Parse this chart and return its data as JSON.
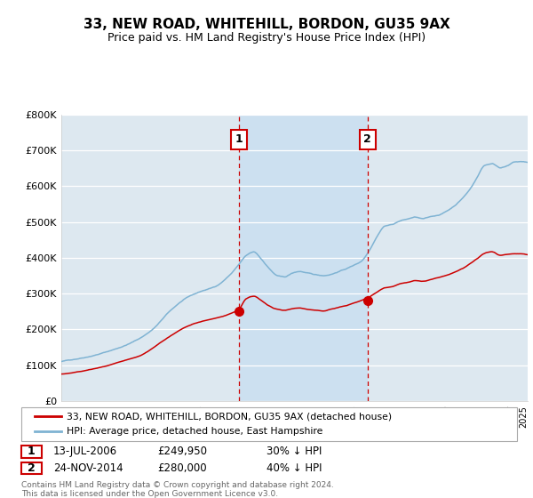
{
  "title": "33, NEW ROAD, WHITEHILL, BORDON, GU35 9AX",
  "subtitle": "Price paid vs. HM Land Registry's House Price Index (HPI)",
  "ylabel_ticks": [
    "£0",
    "£100K",
    "£200K",
    "£300K",
    "£400K",
    "£500K",
    "£600K",
    "£700K",
    "£800K"
  ],
  "ytick_values": [
    0,
    100000,
    200000,
    300000,
    400000,
    500000,
    600000,
    700000,
    800000
  ],
  "ylim": [
    0,
    800000
  ],
  "xlim_start": 1995.0,
  "xlim_end": 2025.3,
  "sale1_x": 2006.54,
  "sale1_y": 249950,
  "sale2_x": 2014.9,
  "sale2_y": 280000,
  "red_line_color": "#cc0000",
  "blue_line_color": "#7fb3d3",
  "highlight_color": "#c8dff0",
  "bg_color": "#dde8f0",
  "legend1": "33, NEW ROAD, WHITEHILL, BORDON, GU35 9AX (detached house)",
  "legend2": "HPI: Average price, detached house, East Hampshire",
  "sale1_date": "13-JUL-2006",
  "sale1_price": "£249,950",
  "sale1_hpi": "30% ↓ HPI",
  "sale2_date": "24-NOV-2014",
  "sale2_price": "£280,000",
  "sale2_hpi": "40% ↓ HPI",
  "footer": "Contains HM Land Registry data © Crown copyright and database right 2024.\nThis data is licensed under the Open Government Licence v3.0."
}
